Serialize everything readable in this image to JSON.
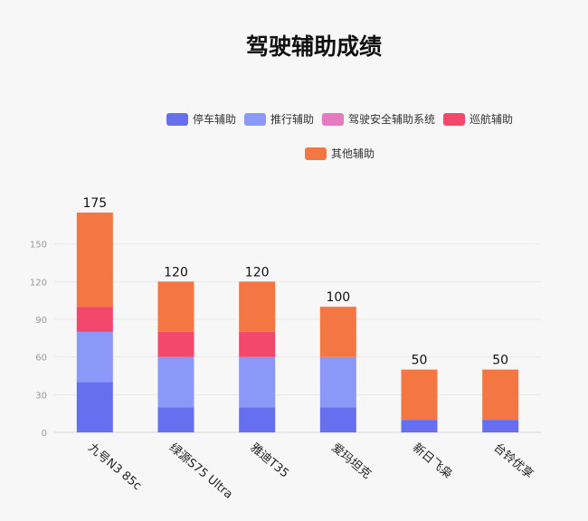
{
  "chart_data": {
    "type": "bar",
    "stacked": true,
    "title": "驾驶辅助成绩",
    "xlabel": "",
    "ylabel": "",
    "ylim": [
      0,
      175
    ],
    "yticks": [
      0,
      30,
      60,
      90,
      120,
      150
    ],
    "grid": true,
    "legend_position": "top",
    "categories": [
      "九号N3 85c",
      "绿源S75 Ultra",
      "雅迪T35",
      "爱玛坦克",
      "新日飞枭",
      "台铃优享"
    ],
    "totals": [
      "175",
      "120",
      "120",
      "100",
      "50",
      "50"
    ],
    "series": [
      {
        "name": "停车辅助",
        "color": "#6670ee",
        "values": [
          40,
          20,
          20,
          20,
          10,
          10
        ]
      },
      {
        "name": "推行辅助",
        "color": "#8c98f7",
        "values": [
          40,
          40,
          40,
          40,
          0,
          0
        ]
      },
      {
        "name": "驾驶安全辅助系统",
        "color": "#e57ac1",
        "values": [
          0,
          0,
          0,
          0,
          0,
          0
        ]
      },
      {
        "name": "巡航辅助",
        "color": "#f4476c",
        "values": [
          20,
          20,
          20,
          0,
          0,
          0
        ]
      },
      {
        "name": "其他辅助",
        "color": "#f47642",
        "values": [
          75,
          40,
          40,
          40,
          40,
          40
        ]
      }
    ]
  }
}
